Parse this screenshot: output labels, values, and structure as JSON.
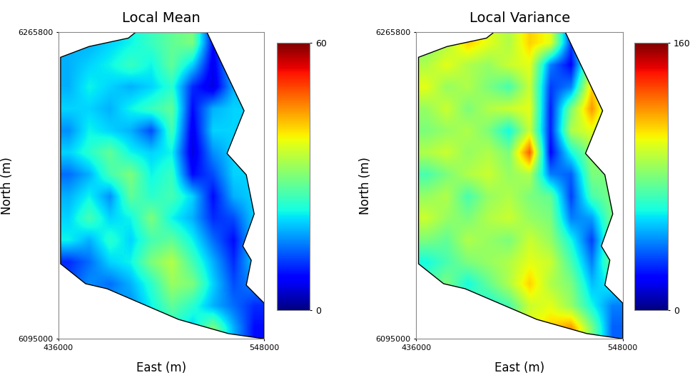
{
  "chart_data": [
    {
      "type": "heatmap",
      "title": "Local Mean",
      "x_label": "East (m)",
      "y_label": "North (m)",
      "xlim": [
        436000,
        548000
      ],
      "ylim": [
        6095000,
        6265800
      ],
      "xticks": [
        436000,
        548000
      ],
      "yticks": [
        6095000,
        6265800
      ],
      "color_range": [
        0,
        60
      ],
      "color_ticks": [
        0,
        60
      ],
      "boundary": {
        "x": [
          516900,
          537100,
          527800,
          538300,
          542600,
          536400,
          541000,
          538300,
          548000,
          548000,
          528600,
          501400,
          462500,
          450800,
          437200,
          437200,
          452700,
          474100,
          478000
        ],
        "y": [
          6265800,
          6222100,
          6198300,
          6186400,
          6164600,
          6146700,
          6138800,
          6124900,
          6114900,
          6095000,
          6097900,
          6105800,
          6122900,
          6125700,
          6136800,
          6251900,
          6257900,
          6262600,
          6265800
        ]
      },
      "cells": [
        [
          18,
          18,
          20,
          22,
          25,
          28,
          30,
          8,
          20,
          20
        ],
        [
          18,
          20,
          22,
          25,
          22,
          28,
          20,
          6,
          20,
          20
        ],
        [
          18,
          22,
          20,
          18,
          20,
          24,
          10,
          5,
          18,
          20
        ],
        [
          20,
          20,
          18,
          22,
          25,
          28,
          8,
          18,
          20,
          20
        ],
        [
          16,
          22,
          20,
          18,
          12,
          26,
          6,
          20,
          20,
          20
        ],
        [
          20,
          24,
          28,
          22,
          20,
          22,
          5,
          16,
          20,
          20
        ],
        [
          14,
          18,
          26,
          30,
          22,
          25,
          8,
          12,
          20,
          20
        ],
        [
          18,
          22,
          16,
          28,
          24,
          26,
          20,
          8,
          18,
          20
        ],
        [
          20,
          26,
          20,
          22,
          30,
          22,
          18,
          10,
          12,
          20
        ],
        [
          22,
          18,
          24,
          20,
          26,
          28,
          22,
          14,
          8,
          20
        ],
        [
          10,
          14,
          20,
          22,
          30,
          34,
          26,
          18,
          10,
          20
        ],
        [
          12,
          16,
          14,
          18,
          24,
          32,
          30,
          20,
          12,
          16
        ],
        [
          20,
          14,
          18,
          16,
          22,
          28,
          24,
          18,
          14,
          10
        ],
        [
          20,
          20,
          20,
          14,
          20,
          24,
          20,
          30,
          18,
          8
        ]
      ]
    },
    {
      "type": "heatmap",
      "title": "Local Variance",
      "x_label": "East (m)",
      "y_label": "North (m)",
      "xlim": [
        436000,
        548000
      ],
      "ylim": [
        6095000,
        6265800
      ],
      "xticks": [
        436000,
        548000
      ],
      "yticks": [
        6095000,
        6265800
      ],
      "color_range": [
        0,
        160
      ],
      "color_ticks": [
        0,
        160
      ],
      "boundary": {
        "x": [
          516900,
          537100,
          527800,
          538300,
          542600,
          536400,
          541000,
          538300,
          548000,
          548000,
          528600,
          501400,
          462500,
          450800,
          437200,
          437200,
          452700,
          474100,
          478000
        ],
        "y": [
          6265800,
          6222100,
          6198300,
          6186400,
          6164600,
          6146700,
          6138800,
          6124900,
          6114900,
          6095000,
          6097900,
          6105800,
          6122900,
          6125700,
          6136800,
          6251900,
          6257900,
          6262600,
          6265800
        ]
      },
      "cells": [
        [
          80,
          90,
          110,
          100,
          90,
          110,
          100,
          30,
          80,
          80
        ],
        [
          90,
          100,
          90,
          85,
          95,
          100,
          40,
          20,
          90,
          80
        ],
        [
          100,
          85,
          90,
          80,
          70,
          95,
          30,
          40,
          110,
          80
        ],
        [
          85,
          95,
          80,
          90,
          95,
          100,
          25,
          80,
          120,
          80
        ],
        [
          80,
          85,
          90,
          80,
          60,
          95,
          25,
          90,
          100,
          80
        ],
        [
          90,
          95,
          85,
          90,
          80,
          130,
          20,
          60,
          85,
          80
        ],
        [
          70,
          80,
          90,
          95,
          85,
          90,
          40,
          35,
          80,
          80
        ],
        [
          85,
          90,
          70,
          85,
          90,
          80,
          75,
          30,
          70,
          80
        ],
        [
          95,
          85,
          80,
          90,
          95,
          85,
          80,
          40,
          45,
          80
        ],
        [
          80,
          75,
          90,
          85,
          80,
          95,
          85,
          60,
          30,
          80
        ],
        [
          60,
          70,
          80,
          85,
          90,
          100,
          95,
          70,
          40,
          80
        ],
        [
          70,
          80,
          60,
          75,
          90,
          110,
          90,
          80,
          50,
          60
        ],
        [
          80,
          70,
          75,
          60,
          70,
          95,
          100,
          85,
          60,
          40
        ],
        [
          80,
          80,
          80,
          70,
          80,
          100,
          110,
          120,
          80,
          35
        ]
      ]
    }
  ]
}
